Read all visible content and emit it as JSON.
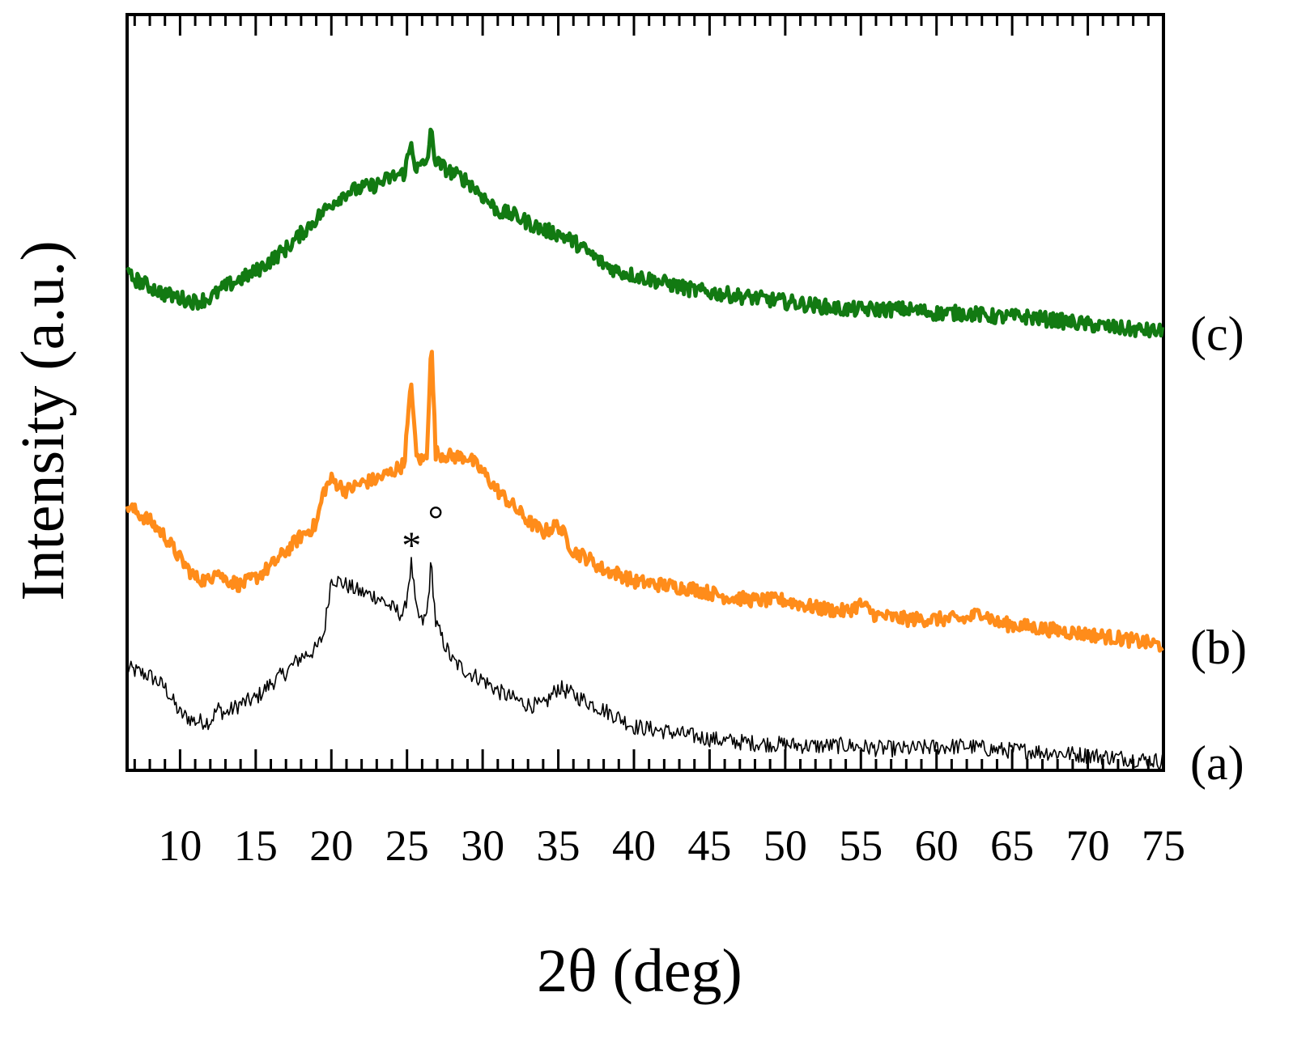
{
  "chart_data": {
    "type": "line",
    "xlabel": "2θ (deg)",
    "ylabel": "Intensity (a.u.)",
    "xlim": [
      6.5,
      75
    ],
    "ylim": [
      0,
      100
    ],
    "x_ticks": [
      10,
      15,
      20,
      25,
      30,
      35,
      40,
      45,
      50,
      55,
      60,
      65,
      70,
      75
    ],
    "x_minor_step": 1,
    "y_tick_labels": false,
    "grid": false,
    "series": [
      {
        "name": "(a)",
        "color": "#000000",
        "x": [
          6.5,
          8,
          9,
          10,
          11,
          12,
          12.5,
          13,
          14,
          15,
          16,
          17,
          18,
          19,
          19.5,
          20,
          21,
          22,
          23,
          24,
          24.8,
          25.3,
          25.6,
          26,
          26.3,
          26.6,
          26.9,
          27.3,
          28,
          29,
          30,
          31,
          32,
          33,
          34,
          35,
          36,
          37,
          38,
          39,
          40,
          42,
          44,
          46,
          48,
          50,
          52,
          54,
          56,
          58,
          60,
          62,
          64,
          66,
          68,
          70,
          72,
          75
        ],
        "y": [
          13.5,
          12.5,
          11,
          7.5,
          6.5,
          6.5,
          8.2,
          7.5,
          8.8,
          9.5,
          11.5,
          13,
          15,
          16,
          18,
          25.5,
          24.5,
          23.5,
          23,
          21.5,
          20.5,
          27.5,
          21,
          19.5,
          20.5,
          27.5,
          19.5,
          17.5,
          14.5,
          13,
          12,
          10.5,
          9.5,
          8.7,
          8.5,
          11,
          10,
          9,
          8,
          7,
          5.8,
          5.2,
          4.5,
          3.9,
          3.6,
          3.4,
          3.2,
          3.3,
          2.9,
          2.8,
          3.1,
          3.2,
          2.7,
          2.6,
          2.3,
          2.0,
          1.7,
          1.2
        ]
      },
      {
        "name": "(b)",
        "color": "#FF8C1A",
        "x": [
          6.5,
          8,
          9,
          10,
          11,
          12,
          12.3,
          12.8,
          14,
          15,
          16,
          17,
          18,
          19,
          19.5,
          20,
          21,
          22,
          23,
          24,
          24.8,
          25.3,
          25.6,
          26,
          26.3,
          26.6,
          26.9,
          28,
          29,
          30,
          31,
          32,
          33,
          34,
          35,
          36,
          37,
          38,
          39,
          40,
          42,
          44,
          46,
          48,
          50,
          52,
          54,
          55,
          56,
          58,
          60,
          62,
          63,
          64,
          66,
          68,
          70,
          72,
          75
        ],
        "y": [
          35,
          33,
          31,
          28,
          25.5,
          25,
          27,
          25.5,
          24.5,
          25.5,
          27,
          29,
          31,
          32.5,
          37,
          38.5,
          37,
          38,
          38.5,
          39.5,
          40.5,
          51.5,
          41.5,
          41,
          41.5,
          57,
          42,
          41.5,
          41.5,
          39.5,
          37,
          35,
          33,
          31.5,
          32.5,
          29,
          28,
          26.5,
          26,
          25,
          24.5,
          24,
          23,
          22.5,
          22.5,
          21.5,
          21,
          22,
          20.5,
          20,
          20,
          20,
          21,
          19.5,
          19,
          18.5,
          18,
          17.5,
          16.5
        ]
      },
      {
        "name": "(c)",
        "color": "#127A12",
        "x": [
          6.5,
          8,
          9,
          10,
          11,
          12,
          13,
          14,
          15,
          16,
          17,
          18,
          19,
          20,
          21,
          22,
          23,
          24,
          24.8,
          25.3,
          25.6,
          26,
          26.3,
          26.6,
          26.9,
          28,
          29,
          30,
          31,
          32,
          33,
          34,
          35,
          36,
          37,
          38,
          39,
          40,
          42,
          44,
          46,
          48,
          50,
          52,
          54,
          56,
          58,
          60,
          62,
          64,
          66,
          68,
          70,
          72,
          75
        ],
        "y": [
          65.5,
          64,
          63,
          62.5,
          62,
          62.5,
          64,
          65,
          66,
          67.5,
          69,
          71,
          73,
          75,
          76.5,
          77,
          77.5,
          78.5,
          79,
          83,
          79.5,
          80,
          80.5,
          84.5,
          80.5,
          79,
          78,
          76,
          74,
          73.5,
          72.5,
          71.5,
          71,
          70,
          68.5,
          67,
          66,
          65.5,
          64.5,
          63.5,
          63,
          62.5,
          62,
          61.5,
          61,
          61,
          61,
          60.5,
          60.5,
          60,
          60,
          59.5,
          59,
          58.5,
          58
        ]
      }
    ],
    "annotations": [
      {
        "text": "*",
        "x": 25.3,
        "y": 30
      },
      {
        "text": "°",
        "x": 26.9,
        "y": 31.5
      }
    ]
  }
}
